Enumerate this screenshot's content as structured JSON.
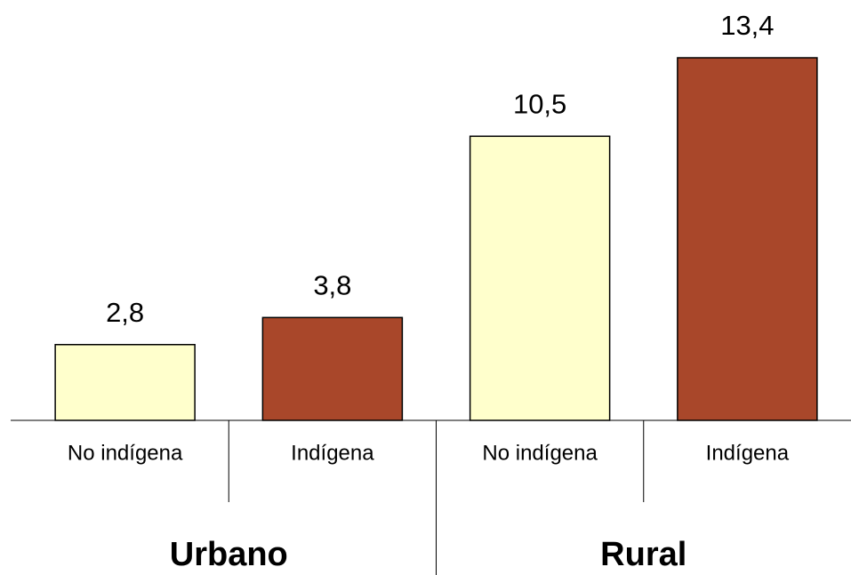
{
  "chart_data": {
    "type": "bar",
    "categories": [
      "No indígena",
      "Indígena",
      "No indígena",
      "Indígena"
    ],
    "groups": [
      "Urbano",
      "Rural"
    ],
    "values": [
      2.8,
      3.8,
      10.5,
      13.4
    ],
    "value_labels": [
      "2,8",
      "3,8",
      "10,5",
      "13,4"
    ],
    "colors": [
      "#ffffcc",
      "#a9472a",
      "#ffffcc",
      "#a9472a"
    ]
  }
}
